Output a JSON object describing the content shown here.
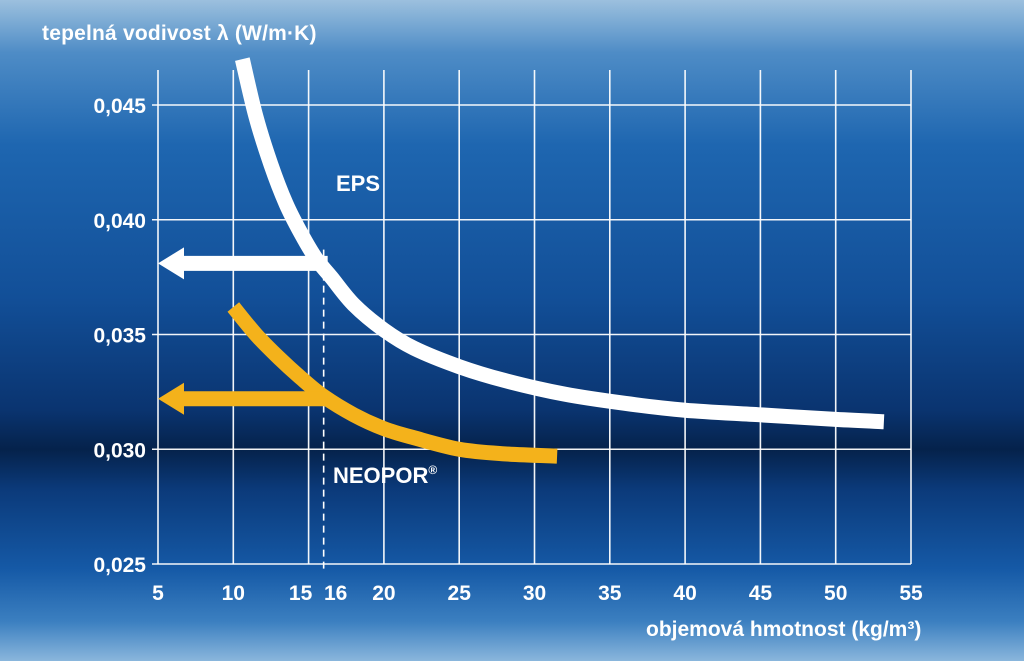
{
  "colors": {
    "background_top": "#8fb6d8",
    "background_mid": "#1557a3",
    "background_band": "#06244f",
    "grid": "#ffffff",
    "eps_curve": "#ffffff",
    "neopor_curve": "#f4b21b"
  },
  "chart_data": {
    "type": "line",
    "ylabel": "tepelná vodivost λ (W/m·K)",
    "xlabel": "objemová hmotnost (kg/m³)",
    "xlim": [
      5,
      55
    ],
    "ylim": [
      0.025,
      0.047
    ],
    "x_ticks": [
      5,
      10,
      15,
      16,
      20,
      25,
      30,
      35,
      40,
      45,
      50,
      55
    ],
    "x_tick_labels": [
      "5",
      "10",
      "15",
      "16",
      "20",
      "25",
      "30",
      "35",
      "40",
      "45",
      "50",
      "55"
    ],
    "x_gridlines": [
      5,
      10,
      15,
      20,
      25,
      30,
      35,
      40,
      45,
      50,
      55
    ],
    "y_ticks": [
      0.025,
      0.03,
      0.035,
      0.04,
      0.045
    ],
    "y_tick_labels": [
      "0,025",
      "0,030",
      "0,035",
      "0,040",
      "0,045"
    ],
    "grid": true,
    "marker_line": {
      "x": 16,
      "style": "dashed"
    },
    "series": [
      {
        "name": "EPS",
        "color": "#ffffff",
        "x": [
          10.6,
          11.5,
          12.5,
          13.5,
          14.5,
          15.5,
          16.5,
          18,
          20,
          22,
          25,
          28,
          32,
          36,
          40,
          45,
          50,
          53.2
        ],
        "y": [
          0.047,
          0.0445,
          0.0424,
          0.0407,
          0.0394,
          0.0383,
          0.0375,
          0.0363,
          0.0352,
          0.0344,
          0.0336,
          0.033,
          0.0324,
          0.032,
          0.0317,
          0.0315,
          0.0313,
          0.0312
        ]
      },
      {
        "name": "NEOPOR®",
        "color": "#f4b21b",
        "x": [
          10,
          11.5,
          13,
          14.5,
          16,
          18,
          20,
          22,
          25,
          28,
          31.5
        ],
        "y": [
          0.0362,
          0.035,
          0.034,
          0.0331,
          0.0323,
          0.0315,
          0.0309,
          0.0305,
          0.03,
          0.0298,
          0.0297
        ]
      }
    ],
    "arrows": [
      {
        "series": "EPS",
        "from_x": 16,
        "to_x": 5,
        "y": 0.0381
      },
      {
        "series": "NEOPOR®",
        "from_x": 16,
        "to_x": 5,
        "y": 0.0322
      }
    ],
    "annotations": [
      {
        "text": "EPS",
        "x": 34,
        "y": 0.0415
      },
      {
        "text": "NEOPOR",
        "sup": "®",
        "x": 34,
        "y": 0.0295
      }
    ]
  }
}
